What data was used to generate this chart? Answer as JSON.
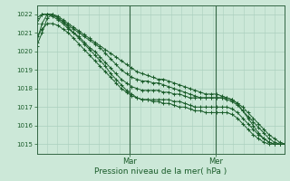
{
  "xlabel": "Pression niveau de la mer( hPa )",
  "bg_color": "#cce8d8",
  "grid_color": "#aacfbe",
  "line_color": "#1a5c2a",
  "vline_color": "#336644",
  "ylim": [
    1014.5,
    1022.5
  ],
  "yticks": [
    1015,
    1016,
    1017,
    1018,
    1019,
    1020,
    1021,
    1022
  ],
  "day_labels": [
    "Mar",
    "Mer"
  ],
  "day_positions": [
    0.375,
    0.72
  ],
  "n_points": 48,
  "series": [
    [
      1020.5,
      1021.5,
      1022.0,
      1022.0,
      1021.9,
      1021.7,
      1021.5,
      1021.3,
      1021.1,
      1020.9,
      1020.7,
      1020.5,
      1020.3,
      1020.1,
      1019.9,
      1019.7,
      1019.5,
      1019.3,
      1019.1,
      1018.9,
      1018.8,
      1018.7,
      1018.6,
      1018.5,
      1018.5,
      1018.4,
      1018.3,
      1018.2,
      1018.1,
      1018.0,
      1017.9,
      1017.8,
      1017.7,
      1017.7,
      1017.7,
      1017.6,
      1017.5,
      1017.4,
      1017.2,
      1017.0,
      1016.7,
      1016.4,
      1016.1,
      1015.8,
      1015.5,
      1015.3,
      1015.1,
      1015.0
    ],
    [
      1021.5,
      1022.0,
      1022.0,
      1022.0,
      1021.8,
      1021.6,
      1021.4,
      1021.2,
      1021.0,
      1020.8,
      1020.6,
      1020.4,
      1020.2,
      1019.9,
      1019.6,
      1019.3,
      1019.0,
      1018.8,
      1018.6,
      1018.5,
      1018.4,
      1018.4,
      1018.3,
      1018.3,
      1018.2,
      1018.1,
      1018.0,
      1017.9,
      1017.8,
      1017.7,
      1017.6,
      1017.5,
      1017.5,
      1017.5,
      1017.5,
      1017.5,
      1017.5,
      1017.4,
      1017.2,
      1016.8,
      1016.4,
      1016.0,
      1015.6,
      1015.3,
      1015.1,
      1015.0,
      1015.0,
      1015.0
    ],
    [
      1021.8,
      1022.0,
      1022.0,
      1021.9,
      1021.7,
      1021.5,
      1021.2,
      1021.0,
      1020.8,
      1020.5,
      1020.2,
      1020.0,
      1019.7,
      1019.4,
      1019.1,
      1018.8,
      1018.5,
      1018.3,
      1018.1,
      1018.0,
      1017.9,
      1017.9,
      1017.9,
      1017.9,
      1017.8,
      1017.8,
      1017.7,
      1017.7,
      1017.6,
      1017.5,
      1017.5,
      1017.5,
      1017.5,
      1017.5,
      1017.5,
      1017.5,
      1017.4,
      1017.3,
      1017.1,
      1016.8,
      1016.5,
      1016.2,
      1015.9,
      1015.6,
      1015.3,
      1015.1,
      1015.0,
      1015.0
    ],
    [
      1020.8,
      1021.2,
      1021.5,
      1021.5,
      1021.4,
      1021.2,
      1021.0,
      1020.7,
      1020.4,
      1020.1,
      1019.8,
      1019.5,
      1019.2,
      1018.9,
      1018.6,
      1018.3,
      1018.0,
      1017.8,
      1017.6,
      1017.5,
      1017.4,
      1017.4,
      1017.4,
      1017.4,
      1017.4,
      1017.4,
      1017.3,
      1017.3,
      1017.2,
      1017.1,
      1017.0,
      1017.0,
      1017.0,
      1017.0,
      1017.0,
      1017.0,
      1017.0,
      1016.9,
      1016.7,
      1016.4,
      1016.1,
      1015.8,
      1015.5,
      1015.3,
      1015.1,
      1015.0,
      1015.0,
      1015.0
    ],
    [
      1020.3,
      1021.0,
      1021.8,
      1022.0,
      1021.8,
      1021.6,
      1021.3,
      1021.0,
      1020.7,
      1020.4,
      1020.1,
      1019.8,
      1019.5,
      1019.2,
      1018.8,
      1018.5,
      1018.2,
      1017.9,
      1017.7,
      1017.5,
      1017.4,
      1017.4,
      1017.3,
      1017.3,
      1017.2,
      1017.2,
      1017.1,
      1017.0,
      1017.0,
      1016.9,
      1016.8,
      1016.8,
      1016.7,
      1016.7,
      1016.7,
      1016.7,
      1016.7,
      1016.6,
      1016.4,
      1016.1,
      1015.8,
      1015.5,
      1015.3,
      1015.1,
      1015.0,
      1015.0,
      1015.0,
      1015.0
    ]
  ]
}
